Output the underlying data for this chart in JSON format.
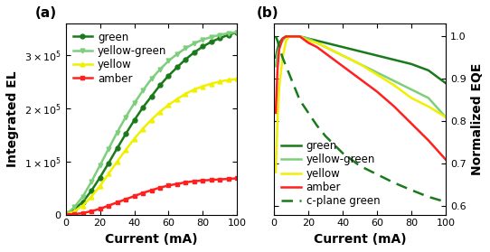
{
  "panel_a": {
    "currents": [
      1,
      5,
      10,
      15,
      20,
      25,
      30,
      35,
      40,
      45,
      50,
      55,
      60,
      65,
      70,
      75,
      80,
      85,
      90,
      95,
      100
    ],
    "green": [
      1500,
      10000,
      24000,
      45000,
      70000,
      97000,
      125000,
      152000,
      178000,
      202000,
      223000,
      244000,
      262000,
      278000,
      293000,
      306000,
      317000,
      326000,
      333000,
      339000,
      344000
    ],
    "yellow_green": [
      2500,
      14000,
      34000,
      62000,
      93000,
      124000,
      155000,
      184000,
      210000,
      234000,
      256000,
      274000,
      290000,
      303000,
      314000,
      323000,
      330000,
      335000,
      339000,
      342000,
      344000
    ],
    "yellow": [
      800,
      6000,
      17000,
      34000,
      54000,
      77000,
      100000,
      122000,
      143000,
      162000,
      179000,
      194000,
      207000,
      218000,
      228000,
      236000,
      242000,
      247000,
      251000,
      254000,
      256000
    ],
    "amber": [
      0,
      800,
      3000,
      6500,
      11000,
      17000,
      23000,
      29000,
      35000,
      41000,
      46000,
      51000,
      55000,
      58000,
      61000,
      63000,
      64500,
      65500,
      66500,
      67500,
      68500
    ],
    "colors": {
      "green": "#1a7a1a",
      "yellow_green": "#7dce7d",
      "yellow": "#f0f000",
      "amber": "#ff2020"
    },
    "ylim": [
      0,
      360000
    ],
    "yticks": [
      0,
      100000,
      200000,
      300000
    ],
    "ylabel": "Integrated EL",
    "xlabel": "Current (mA)"
  },
  "panel_b": {
    "currents": [
      1,
      2,
      3,
      5,
      7,
      9,
      12,
      15,
      20,
      25,
      30,
      35,
      40,
      50,
      60,
      70,
      80,
      90,
      100
    ],
    "green": [
      0.95,
      0.97,
      0.985,
      0.995,
      1.0,
      1.0,
      1.0,
      1.0,
      0.995,
      0.99,
      0.985,
      0.98,
      0.975,
      0.965,
      0.955,
      0.945,
      0.935,
      0.92,
      0.89
    ],
    "yellow_green": [
      0.93,
      0.96,
      0.975,
      0.99,
      1.0,
      1.0,
      1.0,
      1.0,
      0.995,
      0.985,
      0.975,
      0.965,
      0.955,
      0.935,
      0.915,
      0.895,
      0.875,
      0.855,
      0.81
    ],
    "yellow": [
      0.68,
      0.8,
      0.88,
      0.95,
      0.99,
      1.0,
      1.0,
      1.0,
      0.99,
      0.985,
      0.975,
      0.965,
      0.955,
      0.935,
      0.91,
      0.885,
      0.855,
      0.835,
      0.81
    ],
    "amber": [
      0.82,
      0.92,
      0.97,
      0.995,
      1.0,
      1.0,
      1.0,
      1.0,
      0.985,
      0.975,
      0.96,
      0.945,
      0.93,
      0.9,
      0.87,
      0.835,
      0.795,
      0.755,
      0.71
    ],
    "cplane": [
      1.0,
      0.99,
      0.975,
      0.95,
      0.93,
      0.91,
      0.88,
      0.85,
      0.82,
      0.79,
      0.765,
      0.745,
      0.725,
      0.695,
      0.675,
      0.655,
      0.638,
      0.622,
      0.61
    ],
    "colors": {
      "green": "#1a7a1a",
      "yellow_green": "#7dce7d",
      "yellow": "#f0f000",
      "amber": "#ff2020",
      "cplane": "#1a7a1a"
    },
    "ylim": [
      0.58,
      1.03
    ],
    "yticks": [
      0.6,
      0.7,
      0.8,
      0.9,
      1.0
    ],
    "ylabel": "Normalized EQE",
    "xlabel": "Current (mA)"
  },
  "bg_color": "#ffffff",
  "label_fontsize": 10,
  "legend_fontsize": 8.5,
  "lw": 1.8,
  "ms": 3.5
}
